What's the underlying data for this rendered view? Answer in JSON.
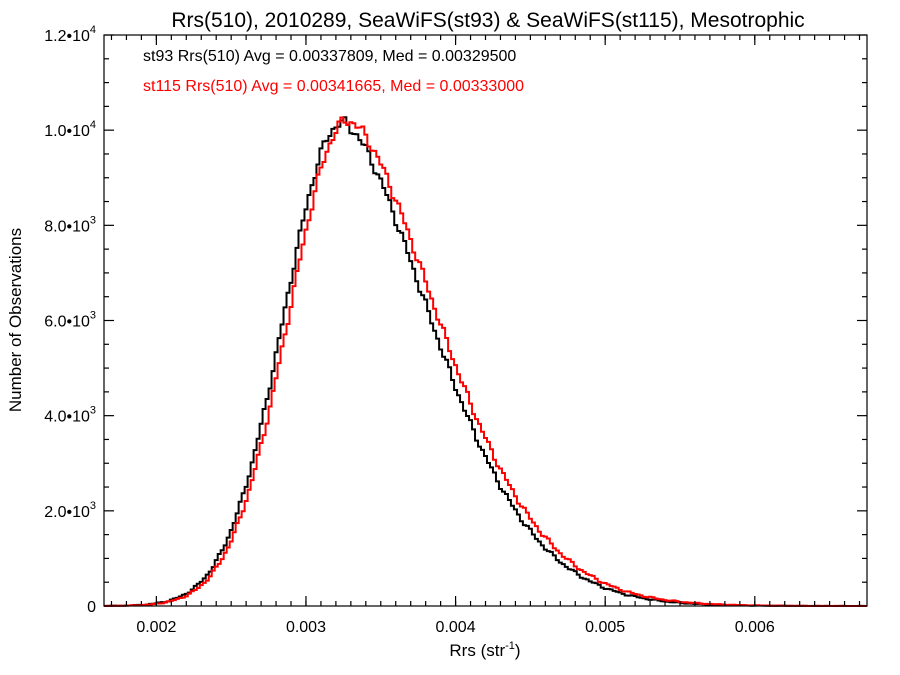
{
  "chart_data": {
    "type": "line",
    "style": "step-histogram",
    "title": "Rrs(510), 2010289, SeaWiFS(st93) & SeaWiFS(st115), Mesotrophic",
    "xlabel": "Rrs (str",
    "xlabel_sup": "-1",
    "xlabel_close": ")",
    "ylabel": "Number of Observations",
    "xlim": [
      0.00165,
      0.00675
    ],
    "ylim": [
      0,
      12000
    ],
    "grid": false,
    "legend_position": "top-left",
    "x_ticks": [
      {
        "value": 0.002,
        "label": "0.002"
      },
      {
        "value": 0.003,
        "label": "0.003"
      },
      {
        "value": 0.004,
        "label": "0.004"
      },
      {
        "value": 0.005,
        "label": "0.005"
      },
      {
        "value": 0.006,
        "label": "0.006"
      }
    ],
    "y_ticks": [
      {
        "value": 0,
        "mantissa": "0",
        "exp": ""
      },
      {
        "value": 2000,
        "mantissa": "2.0•10",
        "exp": "3"
      },
      {
        "value": 4000,
        "mantissa": "4.0•10",
        "exp": "3"
      },
      {
        "value": 6000,
        "mantissa": "6.0•10",
        "exp": "3"
      },
      {
        "value": 8000,
        "mantissa": "8.0•10",
        "exp": "3"
      },
      {
        "value": 10000,
        "mantissa": "1.0•10",
        "exp": "4"
      },
      {
        "value": 12000,
        "mantissa": "1.2•10",
        "exp": "4"
      }
    ],
    "series": [
      {
        "name": "st93 Rrs(510) Avg = 0.00337809, Med = 0.00329500",
        "color": "#000000",
        "peak_x": 0.00324,
        "peak_y": 10150,
        "sigma_left": 0.000385,
        "sigma_right": 0.00058,
        "tail_power": 1.18
      },
      {
        "name": "st115 Rrs(510) Avg = 0.00341665, Med = 0.00333000",
        "color": "#ff0000",
        "peak_x": 0.00328,
        "peak_y": 10200,
        "sigma_left": 0.00039,
        "sigma_right": 0.00059,
        "tail_power": 1.18
      }
    ]
  }
}
